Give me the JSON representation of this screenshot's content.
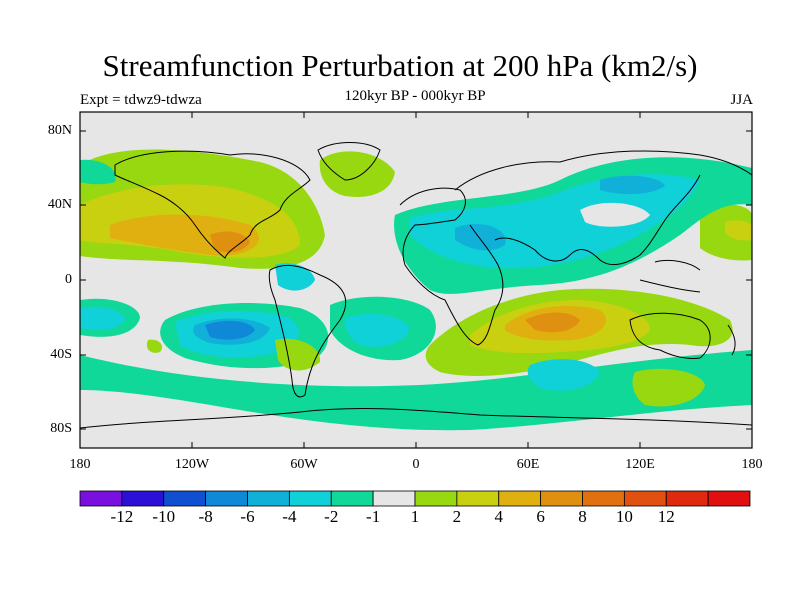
{
  "title": "Streamfunction Perturbation at 200 hPa (km2/s)",
  "expt_label": "Expt = tdwz9-tdwza",
  "period_label": "120kyr BP - 000kyr BP",
  "season_label": "JJA",
  "lat_ticks": [
    "80N",
    "40N",
    "0",
    "40S",
    "80S"
  ],
  "lon_ticks": [
    "180",
    "120W",
    "60W",
    "0",
    "60E",
    "120E",
    "180"
  ],
  "colorbar": {
    "colors": [
      "#7a10e0",
      "#2c10d8",
      "#1050d0",
      "#1088d8",
      "#10b0d8",
      "#10d0d8",
      "#10d898",
      "#e6e6e6",
      "#98d810",
      "#c8d010",
      "#e0b010",
      "#e09010",
      "#e07010",
      "#e05010",
      "#e02a10",
      "#e01010"
    ],
    "labels": [
      "-12",
      "-10",
      "-8",
      "-6",
      "-4",
      "-2",
      "-1",
      "1",
      "2",
      "4",
      "6",
      "8",
      "10",
      "12"
    ]
  }
}
